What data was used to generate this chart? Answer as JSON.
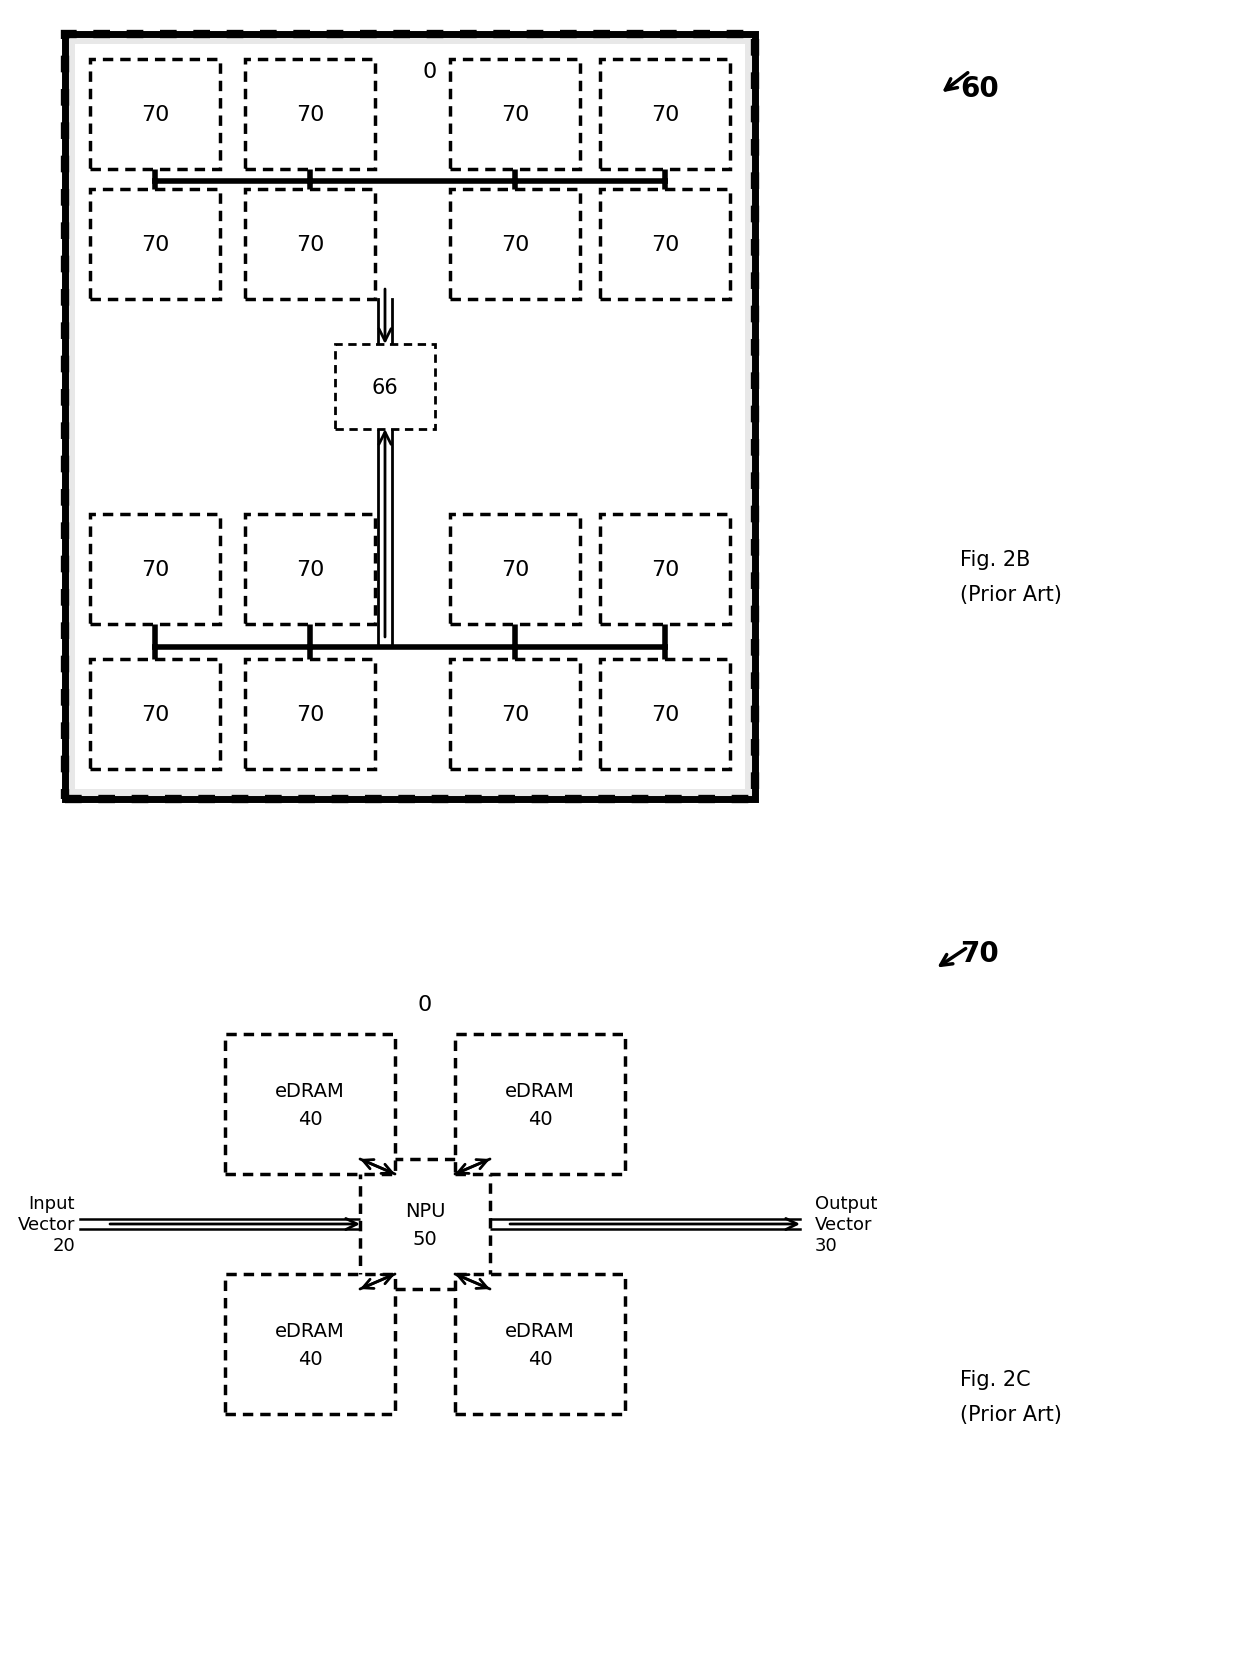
{
  "fig_width": 12.4,
  "fig_height": 16.56,
  "bg_color": "#ffffff",
  "fig2b": {
    "ref_label": "60",
    "fig_label": "Fig. 2B",
    "fig_sublabel": "(Prior Art)"
  },
  "fig2c": {
    "outer_label": "0",
    "ref_label": "70",
    "fig_label": "Fig. 2C",
    "fig_sublabel": "(Prior Art)",
    "npu_label1": "NPU",
    "npu_label2": "50",
    "edram_label1": "eDRAM",
    "edram_label2": "40",
    "input_label": "Input\nVector\n20",
    "output_label": "Output\nVector\n30"
  }
}
